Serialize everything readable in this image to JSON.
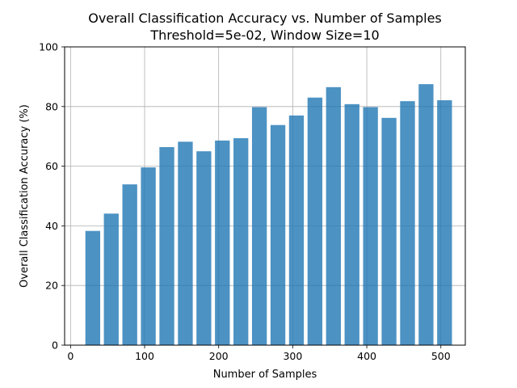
{
  "chart_data": {
    "type": "bar",
    "title": "Overall Classification Accuracy vs. Number of Samples",
    "subtitle": "Threshold=5e-02, Window Size=10",
    "xlabel": "Number of Samples",
    "ylabel": "Overall Classification Accuracy (%)",
    "x": [
      30,
      55,
      80,
      105,
      130,
      155,
      180,
      205,
      230,
      255,
      280,
      305,
      330,
      355,
      380,
      405,
      430,
      455,
      480,
      505
    ],
    "values": [
      38.3,
      44.1,
      53.9,
      59.6,
      66.4,
      68.2,
      65.0,
      68.6,
      69.4,
      79.8,
      73.8,
      77.0,
      83.0,
      86.5,
      80.8,
      79.8,
      76.2,
      81.8,
      87.5,
      82.1
    ],
    "bar_width": 20,
    "xlim": [
      -8,
      533
    ],
    "ylim": [
      0,
      100
    ],
    "xticks": [
      0,
      100,
      200,
      300,
      400,
      500
    ],
    "yticks": [
      0,
      20,
      40,
      60,
      80,
      100
    ],
    "grid": true,
    "bar_color": "#1f77b4"
  }
}
